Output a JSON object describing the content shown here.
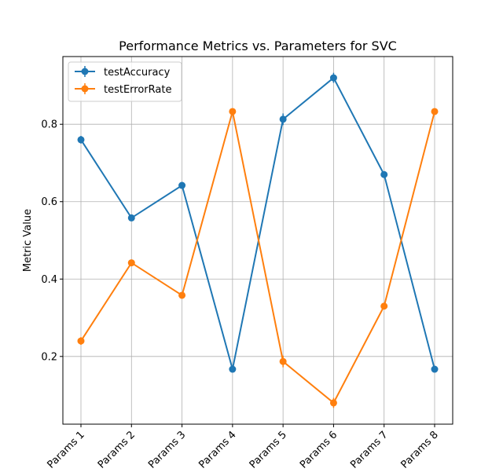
{
  "chart_data": {
    "type": "line",
    "title": "Performance Metrics vs. Parameters for SVC",
    "xlabel": "",
    "ylabel": "Metric Value",
    "categories": [
      "Params 1",
      "Params 2",
      "Params 3",
      "Params 4",
      "Params 5",
      "Params 6",
      "Params 7",
      "Params 8"
    ],
    "ylim": [
      0.025,
      0.975
    ],
    "yticks": [
      0.2,
      0.4,
      0.6,
      0.8
    ],
    "ytick_labels": [
      "0.2",
      "0.4",
      "0.6",
      "0.8"
    ],
    "grid": true,
    "legend_position": "top-left",
    "series": [
      {
        "name": "testAccuracy",
        "color": "#1f77b4",
        "values": [
          0.76,
          0.558,
          0.642,
          0.167,
          0.813,
          0.92,
          0.67,
          0.167
        ],
        "errors": [
          0.01,
          0.006,
          0.006,
          0.004,
          0.015,
          0.013,
          0.005,
          0.004
        ]
      },
      {
        "name": "testErrorRate",
        "color": "#ff7f0e",
        "values": [
          0.24,
          0.442,
          0.358,
          0.833,
          0.187,
          0.08,
          0.33,
          0.833
        ],
        "errors": [
          0.01,
          0.006,
          0.006,
          0.004,
          0.015,
          0.013,
          0.005,
          0.004
        ]
      }
    ]
  }
}
